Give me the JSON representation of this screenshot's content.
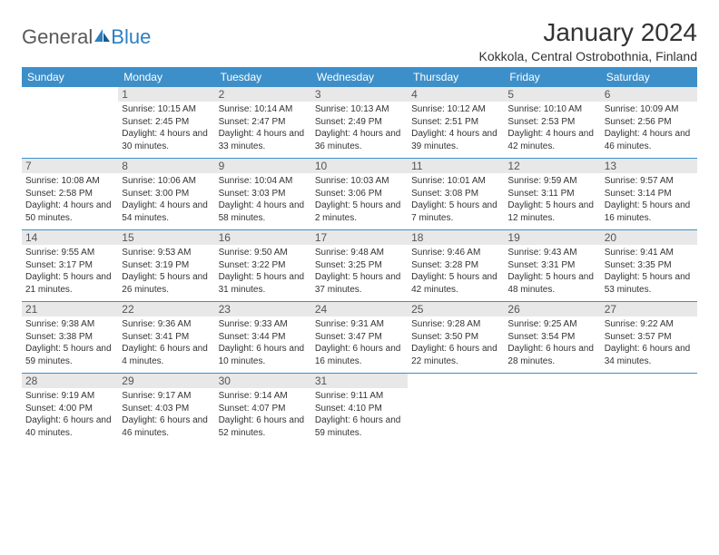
{
  "brand": {
    "text1": "General",
    "text2": "Blue"
  },
  "title": "January 2024",
  "location": "Kokkola, Central Ostrobothnia, Finland",
  "headers": [
    "Sunday",
    "Monday",
    "Tuesday",
    "Wednesday",
    "Thursday",
    "Friday",
    "Saturday"
  ],
  "colors": {
    "header_bg": "#3d8fc9",
    "header_fg": "#ffffff",
    "daynum_bg": "#e8e8e8",
    "border": "#3d8fc9",
    "logo_gray": "#5a5a5a",
    "logo_blue": "#2d7fc1"
  },
  "weeks": [
    [
      null,
      {
        "n": "1",
        "sr": "10:15 AM",
        "ss": "2:45 PM",
        "dl": "4 hours and 30 minutes."
      },
      {
        "n": "2",
        "sr": "10:14 AM",
        "ss": "2:47 PM",
        "dl": "4 hours and 33 minutes."
      },
      {
        "n": "3",
        "sr": "10:13 AM",
        "ss": "2:49 PM",
        "dl": "4 hours and 36 minutes."
      },
      {
        "n": "4",
        "sr": "10:12 AM",
        "ss": "2:51 PM",
        "dl": "4 hours and 39 minutes."
      },
      {
        "n": "5",
        "sr": "10:10 AM",
        "ss": "2:53 PM",
        "dl": "4 hours and 42 minutes."
      },
      {
        "n": "6",
        "sr": "10:09 AM",
        "ss": "2:56 PM",
        "dl": "4 hours and 46 minutes."
      }
    ],
    [
      {
        "n": "7",
        "sr": "10:08 AM",
        "ss": "2:58 PM",
        "dl": "4 hours and 50 minutes."
      },
      {
        "n": "8",
        "sr": "10:06 AM",
        "ss": "3:00 PM",
        "dl": "4 hours and 54 minutes."
      },
      {
        "n": "9",
        "sr": "10:04 AM",
        "ss": "3:03 PM",
        "dl": "4 hours and 58 minutes."
      },
      {
        "n": "10",
        "sr": "10:03 AM",
        "ss": "3:06 PM",
        "dl": "5 hours and 2 minutes."
      },
      {
        "n": "11",
        "sr": "10:01 AM",
        "ss": "3:08 PM",
        "dl": "5 hours and 7 minutes."
      },
      {
        "n": "12",
        "sr": "9:59 AM",
        "ss": "3:11 PM",
        "dl": "5 hours and 12 minutes."
      },
      {
        "n": "13",
        "sr": "9:57 AM",
        "ss": "3:14 PM",
        "dl": "5 hours and 16 minutes."
      }
    ],
    [
      {
        "n": "14",
        "sr": "9:55 AM",
        "ss": "3:17 PM",
        "dl": "5 hours and 21 minutes."
      },
      {
        "n": "15",
        "sr": "9:53 AM",
        "ss": "3:19 PM",
        "dl": "5 hours and 26 minutes."
      },
      {
        "n": "16",
        "sr": "9:50 AM",
        "ss": "3:22 PM",
        "dl": "5 hours and 31 minutes."
      },
      {
        "n": "17",
        "sr": "9:48 AM",
        "ss": "3:25 PM",
        "dl": "5 hours and 37 minutes."
      },
      {
        "n": "18",
        "sr": "9:46 AM",
        "ss": "3:28 PM",
        "dl": "5 hours and 42 minutes."
      },
      {
        "n": "19",
        "sr": "9:43 AM",
        "ss": "3:31 PM",
        "dl": "5 hours and 48 minutes."
      },
      {
        "n": "20",
        "sr": "9:41 AM",
        "ss": "3:35 PM",
        "dl": "5 hours and 53 minutes."
      }
    ],
    [
      {
        "n": "21",
        "sr": "9:38 AM",
        "ss": "3:38 PM",
        "dl": "5 hours and 59 minutes."
      },
      {
        "n": "22",
        "sr": "9:36 AM",
        "ss": "3:41 PM",
        "dl": "6 hours and 4 minutes."
      },
      {
        "n": "23",
        "sr": "9:33 AM",
        "ss": "3:44 PM",
        "dl": "6 hours and 10 minutes."
      },
      {
        "n": "24",
        "sr": "9:31 AM",
        "ss": "3:47 PM",
        "dl": "6 hours and 16 minutes."
      },
      {
        "n": "25",
        "sr": "9:28 AM",
        "ss": "3:50 PM",
        "dl": "6 hours and 22 minutes."
      },
      {
        "n": "26",
        "sr": "9:25 AM",
        "ss": "3:54 PM",
        "dl": "6 hours and 28 minutes."
      },
      {
        "n": "27",
        "sr": "9:22 AM",
        "ss": "3:57 PM",
        "dl": "6 hours and 34 minutes."
      }
    ],
    [
      {
        "n": "28",
        "sr": "9:19 AM",
        "ss": "4:00 PM",
        "dl": "6 hours and 40 minutes."
      },
      {
        "n": "29",
        "sr": "9:17 AM",
        "ss": "4:03 PM",
        "dl": "6 hours and 46 minutes."
      },
      {
        "n": "30",
        "sr": "9:14 AM",
        "ss": "4:07 PM",
        "dl": "6 hours and 52 minutes."
      },
      {
        "n": "31",
        "sr": "9:11 AM",
        "ss": "4:10 PM",
        "dl": "6 hours and 59 minutes."
      },
      null,
      null,
      null
    ]
  ],
  "labels": {
    "sunrise": "Sunrise:",
    "sunset": "Sunset:",
    "daylight": "Daylight:"
  }
}
